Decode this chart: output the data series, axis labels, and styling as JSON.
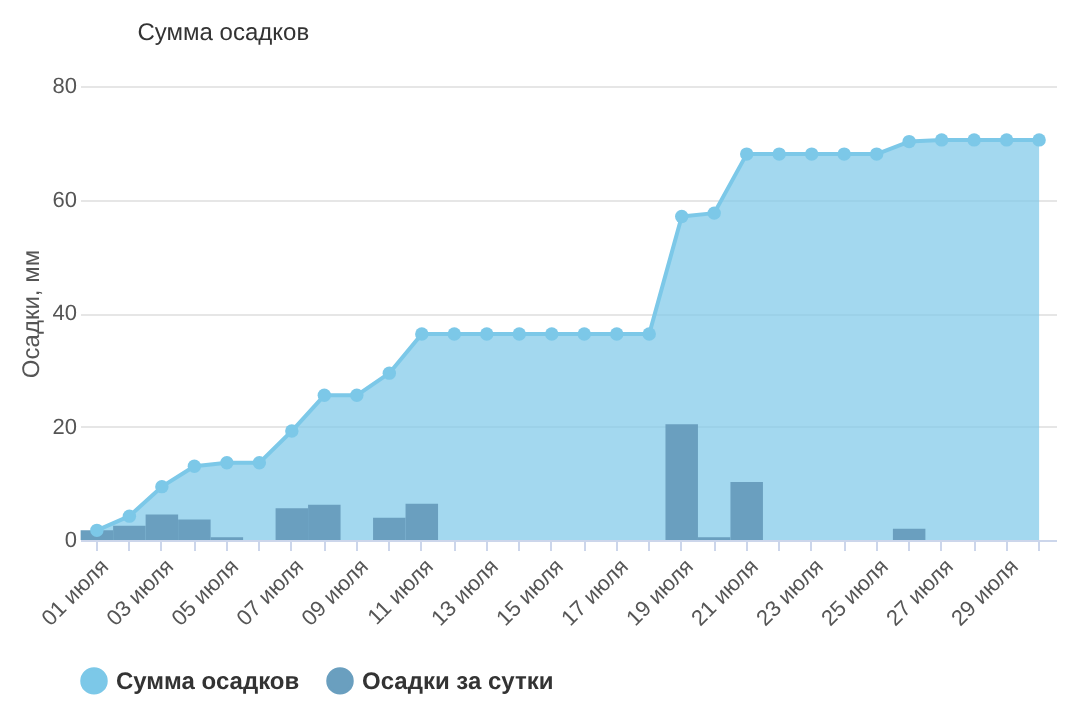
{
  "chart_data": {
    "type": "area",
    "title": "Сумма осадков",
    "ylabel": "Осадки, мм",
    "categories": [
      "01 июля",
      null,
      "03 июля",
      null,
      "05 июля",
      null,
      "07 июля",
      null,
      "09 июля",
      null,
      "11 июля",
      null,
      "13 июля",
      null,
      "15 июля",
      null,
      "17 июля",
      null,
      "19 июля",
      null,
      "21 июля",
      null,
      "23 июля",
      null,
      "25 июля",
      null,
      "27 июля",
      null,
      "29 июля",
      null
    ],
    "series": [
      {
        "name": "Сумма осадков",
        "color": "#7cc8e8",
        "values": [
          1.7,
          4.2,
          9.4,
          13,
          13.6,
          13.6,
          19.2,
          25.5,
          25.5,
          29.4,
          36.3,
          36.3,
          36.3,
          36.3,
          36.3,
          36.3,
          36.3,
          36.3,
          57,
          57.6,
          68,
          68,
          68,
          68,
          68,
          70.2,
          70.5,
          70.5,
          70.5,
          70.5
        ]
      },
      {
        "name": "Осадки за сутки",
        "type": "bar",
        "color": "#6a9fbf",
        "values": [
          1.7,
          2.5,
          4.5,
          3.6,
          0.5,
          null,
          5.6,
          6.2,
          null,
          3.9,
          6.4,
          null,
          null,
          null,
          null,
          null,
          null,
          null,
          20.4,
          0.5,
          10.2,
          null,
          null,
          null,
          null,
          2,
          null,
          null,
          null,
          null
        ]
      }
    ],
    "ylim": [
      0,
      80
    ],
    "yticks": [
      0,
      20,
      40,
      60,
      80
    ],
    "grid": "y",
    "legend": "bottom",
    "marker": "circle"
  }
}
